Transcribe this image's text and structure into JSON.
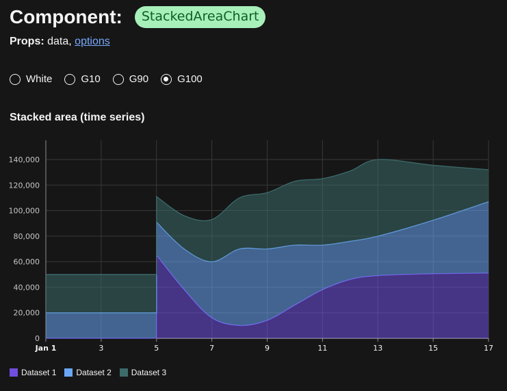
{
  "header": {
    "label": "Component:",
    "component_name": "StackedAreaChart"
  },
  "props": {
    "label": "Props:",
    "data_text": "data,",
    "options_link": "options"
  },
  "themes": {
    "options": [
      "White",
      "G10",
      "G90",
      "G100"
    ],
    "selected": "G100"
  },
  "colors": {
    "background": "#161616",
    "grid": "#393939",
    "axis": "#8d8d8d",
    "dataset1": "#6f4ee0",
    "dataset2": "#6aa6f5",
    "dataset3": "#3d6a6a"
  },
  "chart_data": {
    "type": "area",
    "stacked": true,
    "title": "Stacked area (time series)",
    "xlabel": "",
    "ylabel": "",
    "x_ticks": [
      "Jan 1",
      "3",
      "5",
      "7",
      "9",
      "11",
      "13",
      "15",
      "17"
    ],
    "x_range": [
      1,
      17
    ],
    "y_ticks": [
      "0",
      "20,000",
      "40,000",
      "60,000",
      "80,000",
      "100,000",
      "120,000",
      "140,000"
    ],
    "ylim": [
      0,
      155000
    ],
    "grid": true,
    "legend": "bottom-left",
    "series": [
      {
        "name": "Dataset 1",
        "color": "#6f4ee0",
        "points": [
          [
            1,
            0
          ],
          [
            5,
            0
          ],
          [
            5,
            65000
          ],
          [
            6,
            38000
          ],
          [
            7,
            16000
          ],
          [
            8,
            10000
          ],
          [
            9,
            14000
          ],
          [
            10,
            26000
          ],
          [
            11,
            38000
          ],
          [
            12,
            46000
          ],
          [
            13,
            49000
          ],
          [
            15,
            50500
          ],
          [
            17,
            51000
          ]
        ]
      },
      {
        "name": "Dataset 2",
        "color": "#6aa6f5",
        "points": [
          [
            1,
            20000
          ],
          [
            5,
            20000
          ],
          [
            5,
            26000
          ],
          [
            6,
            32000
          ],
          [
            7,
            44000
          ],
          [
            8,
            60000
          ],
          [
            9,
            56000
          ],
          [
            10,
            47000
          ],
          [
            11,
            35000
          ],
          [
            12,
            30000
          ],
          [
            13,
            31000
          ],
          [
            15,
            42000
          ],
          [
            17,
            56000
          ]
        ]
      },
      {
        "name": "Dataset 3",
        "color": "#3d6a6a",
        "points": [
          [
            1,
            30000
          ],
          [
            5,
            30000
          ],
          [
            5,
            20000
          ],
          [
            6,
            26000
          ],
          [
            7,
            33000
          ],
          [
            8,
            40000
          ],
          [
            9,
            44000
          ],
          [
            10,
            50000
          ],
          [
            11,
            52000
          ],
          [
            12,
            55000
          ],
          [
            13,
            60000
          ],
          [
            15,
            43000
          ],
          [
            17,
            25000
          ]
        ]
      }
    ]
  }
}
